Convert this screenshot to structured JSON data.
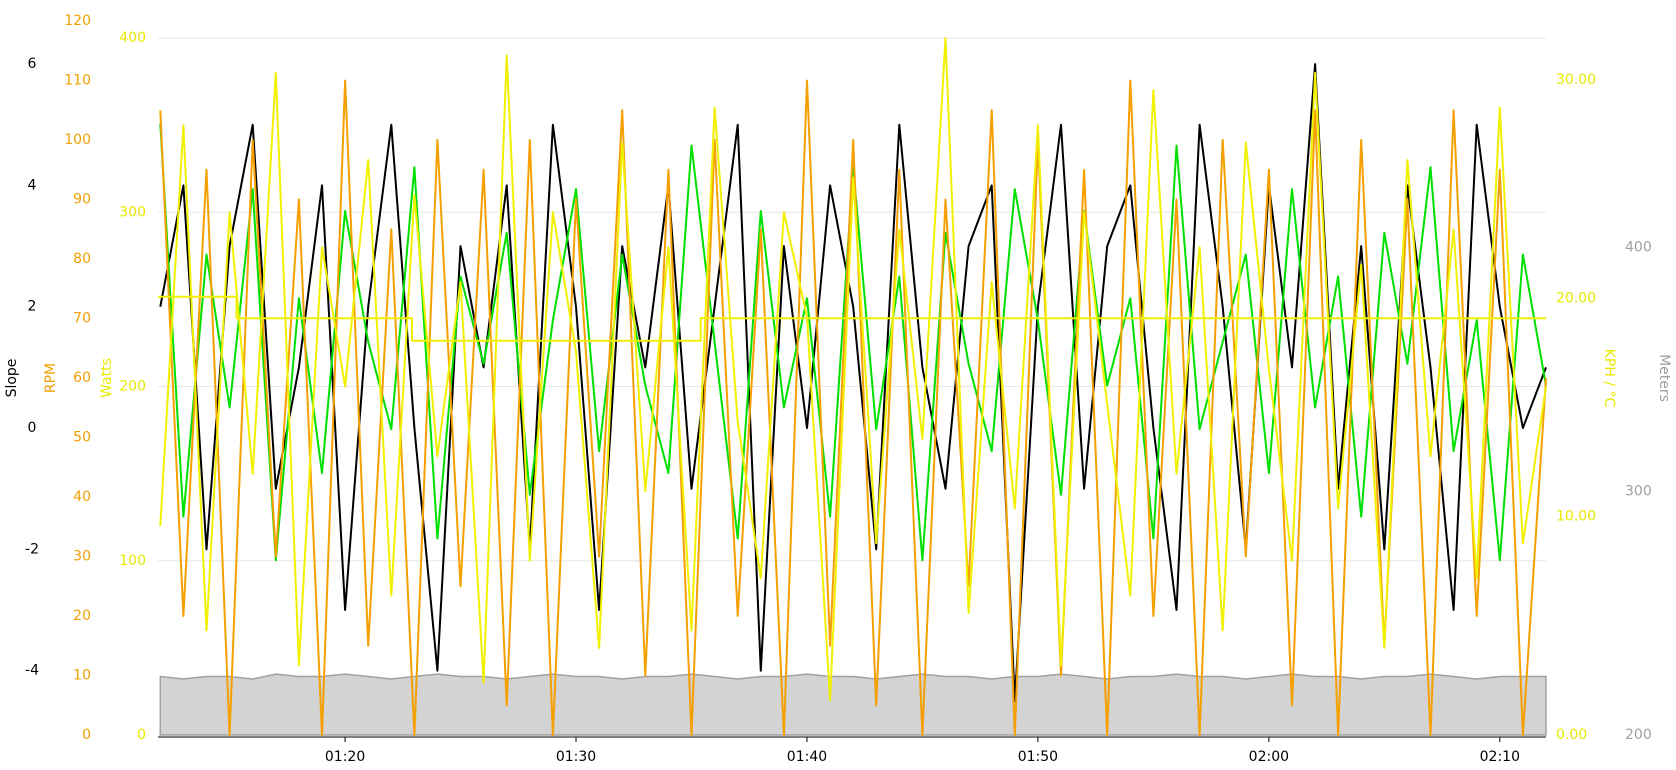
{
  "chart_data": {
    "type": "line",
    "xlim": [
      71.9,
      132.0
    ],
    "xticks": [
      {
        "value": 80,
        "label": "01:20"
      },
      {
        "value": 90,
        "label": "01:30"
      },
      {
        "value": 100,
        "label": "01:40"
      },
      {
        "value": 110,
        "label": "01:50"
      },
      {
        "value": 120,
        "label": "02:00"
      },
      {
        "value": 130,
        "label": "02:10"
      }
    ],
    "grid": true,
    "y_axes": [
      {
        "label": "Slope",
        "color": "#000000",
        "side": "left",
        "ylim": [
          -5.06,
          6.71
        ],
        "yticks": [
          -4,
          -2,
          0,
          2,
          4,
          6
        ]
      },
      {
        "label": "RPM",
        "color": "#f0a000",
        "side": "left",
        "ylim": [
          0,
          120
        ],
        "yticks": [
          0,
          10,
          20,
          30,
          40,
          50,
          60,
          70,
          80,
          90,
          100,
          110,
          120
        ]
      },
      {
        "label": "Watts",
        "color": "#e8e800",
        "side": "left",
        "ylim": [
          0,
          409.8
        ],
        "yticks": [
          0,
          100,
          200,
          300,
          400
        ],
        "grid": true
      },
      {
        "label": "KPH / °C",
        "color": "#e8e800",
        "side": "right",
        "ylim": [
          0,
          32.7
        ],
        "yticks": [
          {
            "value": 0,
            "label": "0.00"
          },
          {
            "value": 10,
            "label": "10.00"
          },
          {
            "value": 20,
            "label": "20.00"
          },
          {
            "value": 30,
            "label": "30.00"
          }
        ]
      },
      {
        "label": "Meters",
        "color": "#a0a0a0",
        "side": "right",
        "ylim": [
          200,
          493
        ],
        "yticks": [
          200,
          300,
          400
        ]
      }
    ],
    "x": [
      72,
      73,
      74,
      75,
      76,
      77,
      78,
      79,
      80,
      81,
      82,
      83,
      84,
      85,
      86,
      87,
      88,
      89,
      90,
      91,
      92,
      93,
      94,
      95,
      96,
      97,
      98,
      99,
      100,
      101,
      102,
      103,
      104,
      105,
      106,
      107,
      108,
      109,
      110,
      111,
      112,
      113,
      114,
      115,
      116,
      117,
      118,
      119,
      120,
      121,
      122,
      123,
      124,
      125,
      126,
      127,
      128,
      129,
      130,
      131,
      132
    ],
    "series": [
      {
        "color": "#a0a0a0",
        "fill": "#d3d3d3",
        "axis": 4,
        "area": true,
        "values": [
          224,
          223,
          224,
          224,
          223,
          225,
          224,
          224,
          225,
          224,
          223,
          224,
          225,
          224,
          224,
          223,
          224,
          225,
          224,
          224,
          223,
          224,
          224,
          225,
          224,
          223,
          224,
          224,
          225,
          224,
          224,
          223,
          224,
          225,
          224,
          224,
          223,
          224,
          224,
          225,
          224,
          223,
          224,
          224,
          225,
          224,
          224,
          223,
          224,
          225,
          224,
          224,
          223,
          224,
          224,
          225,
          224,
          223,
          224,
          224,
          224
        ]
      },
      {
        "color": "#000000",
        "axis": 0,
        "values": [
          2,
          4,
          -2,
          3,
          5,
          -1,
          1,
          4,
          -3,
          2,
          5,
          0,
          -4,
          3,
          1,
          4,
          -2,
          5,
          2,
          -3,
          3,
          1,
          4,
          -1,
          2,
          5,
          -4,
          3,
          0,
          4,
          2,
          -2,
          5,
          1,
          -1,
          3,
          4,
          -4.5,
          2,
          5,
          -1,
          3,
          4,
          0,
          -3,
          5,
          2,
          -2,
          4,
          1,
          6,
          -1,
          3,
          -2,
          4,
          1,
          -3,
          5,
          2,
          0,
          1
        ]
      },
      {
        "color": "#00e000",
        "axis": 3,
        "values": [
          28,
          10,
          22,
          15,
          25,
          8,
          20,
          12,
          24,
          18,
          14,
          26,
          9,
          21,
          17,
          23,
          11,
          19,
          25,
          13,
          22,
          16,
          12,
          27,
          18,
          9,
          24,
          15,
          20,
          10,
          26,
          14,
          21,
          8,
          23,
          17,
          13,
          25,
          19,
          11,
          24,
          16,
          20,
          9,
          27,
          14,
          18,
          22,
          12,
          25,
          15,
          21,
          10,
          23,
          17,
          26,
          13,
          19,
          8,
          22,
          16
        ]
      },
      {
        "color": "#f5a000",
        "axis": 1,
        "values": [
          105,
          20,
          95,
          0,
          100,
          30,
          90,
          0,
          110,
          15,
          85,
          0,
          100,
          25,
          95,
          5,
          100,
          0,
          90,
          30,
          105,
          10,
          95,
          0,
          100,
          20,
          85,
          0,
          110,
          15,
          100,
          5,
          95,
          0,
          90,
          25,
          105,
          0,
          100,
          10,
          95,
          0,
          110,
          20,
          90,
          0,
          100,
          30,
          95,
          5,
          105,
          0,
          100,
          15,
          90,
          0,
          105,
          20,
          95,
          0,
          60
        ]
      },
      {
        "color": "#f0f000",
        "axis": 2,
        "values": [
          120,
          350,
          60,
          300,
          150,
          380,
          40,
          280,
          200,
          330,
          80,
          310,
          160,
          260,
          30,
          390,
          100,
          300,
          220,
          50,
          340,
          140,
          280,
          60,
          360,
          180,
          90,
          300,
          240,
          20,
          320,
          110,
          290,
          170,
          400,
          70,
          260,
          130,
          350,
          40,
          300,
          190,
          80,
          370,
          150,
          280,
          60,
          340,
          210,
          100,
          380,
          130,
          270,
          50,
          330,
          160,
          290,
          90,
          360,
          110,
          200
        ]
      },
      {
        "color": "#f0f000",
        "axis": 3,
        "x": [
          71.9,
          75.3,
          75.3,
          82.9,
          82.9,
          95.4,
          95.4,
          132.0
        ],
        "values": [
          20.07,
          20.07,
          19.09,
          19.09,
          18.06,
          18.06,
          19.09,
          19.09
        ]
      }
    ]
  }
}
